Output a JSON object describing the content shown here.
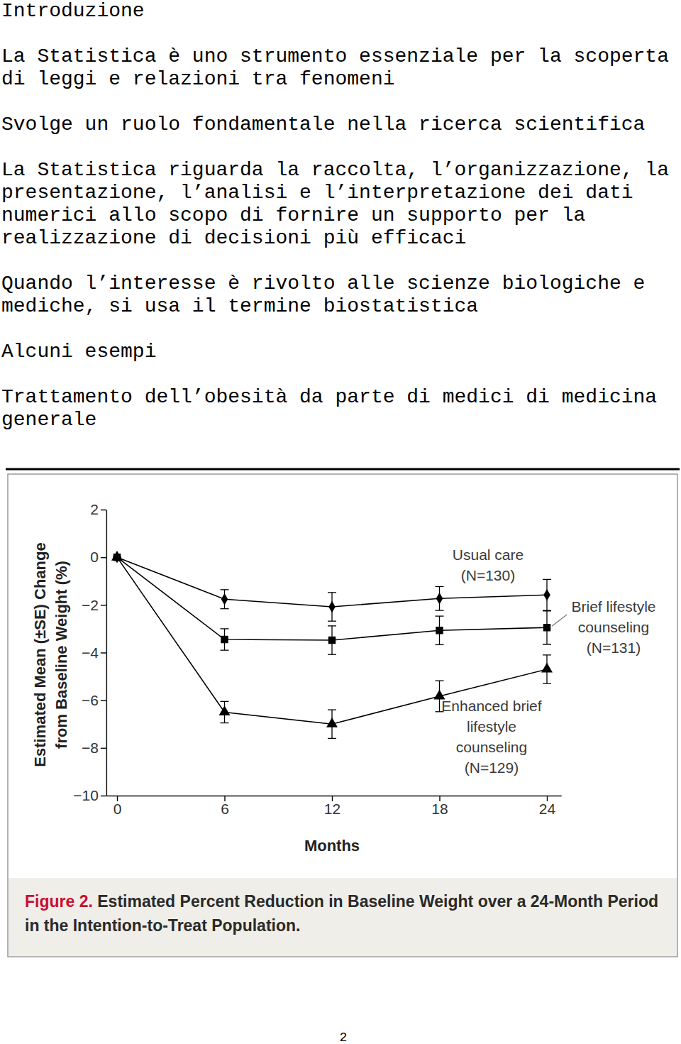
{
  "document": {
    "heading": "Introduzione",
    "paragraphs": [
      "La Statistica è uno strumento essenziale per la scoperta di leggi e relazioni tra fenomeni",
      "Svolge un ruolo fondamentale nella ricerca scientifica",
      "La Statistica riguarda la raccolta, l’organizzazione, la presentazione, l’analisi e l’interpretazione dei dati numerici allo scopo di fornire un supporto per la realizzazione di decisioni più efficaci",
      "Quando l’interesse è rivolto alle scienze biologiche e mediche, si usa il termine biostatistica",
      "Alcuni esempi",
      "Trattamento dell’obesità da parte di medici di medicina generale"
    ],
    "page_number": "2"
  },
  "chart_data": {
    "type": "line",
    "title": "Figure 2. Estimated Percent Reduction in Baseline Weight over a 24-Month Period in the Intention-to-Treat Population.",
    "x_label": "Months",
    "y_label": "Estimated Mean (±SE) Change from Baseline Weight (%)",
    "x": [
      0,
      6,
      12,
      18,
      24
    ],
    "xlim": [
      -0.6,
      24.8
    ],
    "xticks": [
      0,
      6,
      12,
      18,
      24
    ],
    "ylim": [
      -10,
      2
    ],
    "yticks": [
      2,
      0,
      {
        "value": -2,
        "label": "−2"
      },
      {
        "value": -4,
        "label": "−4"
      },
      {
        "value": -6,
        "label": "−6"
      },
      {
        "value": -8,
        "label": "−8"
      },
      {
        "value": -10,
        "label": "−10"
      }
    ],
    "grid": false,
    "series": [
      {
        "name": "Usual care (N=130)",
        "color": "#000000",
        "marker": "diamond",
        "line_style": "solid",
        "values": [
          0,
          -1.76,
          -2.08,
          -1.73,
          -1.58
        ],
        "errors": [
          0,
          0.4,
          0.6,
          0.5,
          0.65
        ]
      },
      {
        "name": "Brief lifestyle counseling (N=131)",
        "color": "#000000",
        "marker": "square",
        "line_style": "solid",
        "values": [
          0,
          -3.45,
          -3.48,
          -3.07,
          -2.95
        ],
        "errors": [
          0,
          0.45,
          0.6,
          0.6,
          0.7
        ]
      },
      {
        "name": "Enhanced brief lifestyle counseling (N=129)",
        "color": "#000000",
        "marker": "triangle",
        "line_style": "solid",
        "values": [
          0,
          -6.5,
          -7.0,
          -5.83,
          -4.7
        ],
        "errors": [
          0,
          0.45,
          0.6,
          0.65,
          0.6
        ]
      }
    ]
  }
}
